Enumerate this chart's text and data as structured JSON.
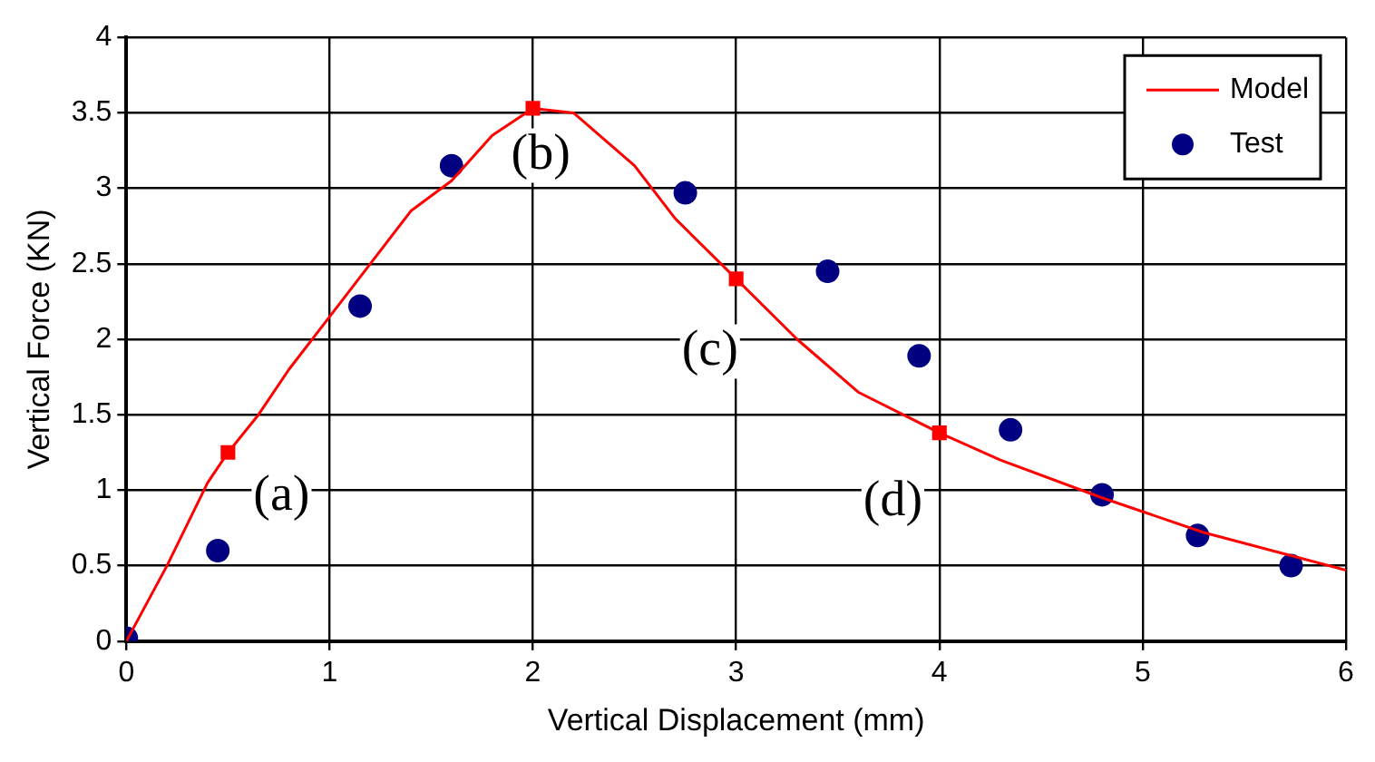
{
  "chart_data": {
    "type": "line",
    "xlabel": "Vertical Displacement (mm)",
    "ylabel": "Vertical Force (KN)",
    "xlim": [
      0,
      6
    ],
    "xticks": [
      0,
      1,
      2,
      3,
      4,
      5,
      6
    ],
    "ylim": [
      0,
      4
    ],
    "yticks": [
      0,
      0.5,
      1,
      1.5,
      2,
      2.5,
      3,
      3.5,
      4
    ],
    "grid": true,
    "legend": "top right",
    "series": [
      {
        "name": "Model",
        "color": "#ff0000",
        "marker": "none",
        "x": [
          0,
          0.2,
          0.4,
          0.5,
          0.65,
          0.8,
          1,
          1.2,
          1.4,
          1.6,
          1.8,
          2,
          2.2,
          2.5,
          2.7,
          3,
          3.3,
          3.6,
          4,
          4.3,
          4.8,
          5.3,
          6
        ],
        "values": [
          0,
          0.5,
          1.05,
          1.25,
          1.5,
          1.8,
          2.15,
          2.5,
          2.85,
          3.05,
          3.35,
          3.53,
          3.5,
          3.15,
          2.8,
          2.4,
          2.0,
          1.65,
          1.38,
          1.2,
          0.95,
          0.72,
          0.47
        ]
      },
      {
        "name": "Test",
        "type": "scatter",
        "color": "#000080",
        "marker": "circle",
        "x": [
          0,
          0.45,
          1.15,
          1.6,
          2.75,
          3.45,
          3.9,
          4.35,
          4.8,
          5.27,
          5.73
        ],
        "values": [
          0.02,
          0.6,
          2.22,
          3.15,
          2.97,
          2.45,
          1.89,
          1.4,
          0.97,
          0.7,
          0.5
        ]
      },
      {
        "type": "scatter",
        "color": "#ff0000",
        "marker": "square",
        "x": [
          0.5,
          2,
          3,
          4
        ],
        "values": [
          1.25,
          3.53,
          2.4,
          1.38
        ]
      }
    ],
    "annotations": [
      {
        "text": "(a)",
        "x": 0.5,
        "y": 1.25
      },
      {
        "text": "(b)",
        "x": 2,
        "y": 3.53
      },
      {
        "text": "(c)",
        "x": 3,
        "y": 2.4
      },
      {
        "text": "(d)",
        "x": 4,
        "y": 1.38
      }
    ]
  }
}
